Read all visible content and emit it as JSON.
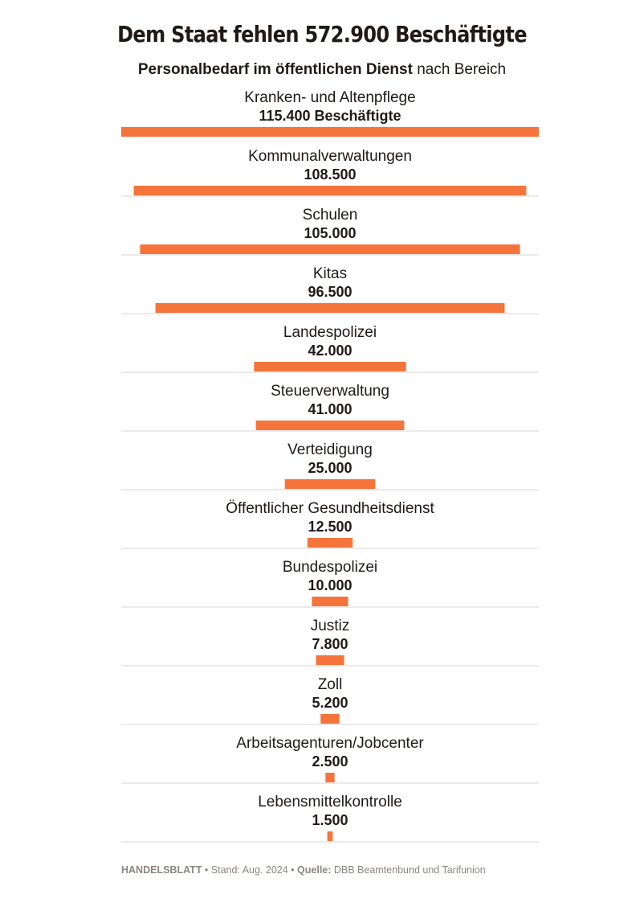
{
  "header": {
    "title": "Dem Staat fehlen 572.900 Beschäftigte",
    "subtitle_bold": "Personalbedarf im öffentlichen Dienst",
    "subtitle_rest": " nach Bereich"
  },
  "footer": {
    "publisher": "HANDELSBLATT",
    "sep": " • ",
    "stand": "Stand: Aug. 2024",
    "source_label": "Quelle:",
    "source_text": " DBB Beamtenbund und Tarifunion"
  },
  "colors": {
    "bar": "#f4743b",
    "divider": "#d9d6d2",
    "text": "#1f1a17",
    "footer": "#8a8580"
  },
  "chart_data": {
    "type": "bar",
    "orientation": "horizontal-centered",
    "title": "Dem Staat fehlen 572.900 Beschäftigte",
    "subtitle": "Personalbedarf im öffentlichen Dienst nach Bereich",
    "categories": [
      "Kranken- und Altenpflege",
      "Kommunalverwaltungen",
      "Schulen",
      "Kitas",
      "Landespolizei",
      "Steuerverwaltung",
      "Verteidigung",
      "Öffentlicher Gesundheitsdienst",
      "Bundespolizei",
      "Justiz",
      "Zoll",
      "Arbeitsagenturen/Jobcenter",
      "Lebensmittelkontrolle"
    ],
    "values": [
      115400,
      108500,
      105000,
      96500,
      42000,
      41000,
      25000,
      12500,
      10000,
      7800,
      5200,
      2500,
      1500
    ],
    "value_labels": [
      "115.400 Beschäftigte",
      "108.500",
      "105.000",
      "96.500",
      "42.000",
      "41.000",
      "25.000",
      "12.500",
      "10.000",
      "7.800",
      "5.200",
      "2.500",
      "1.500"
    ],
    "xlim": [
      0,
      115400
    ],
    "grid": false,
    "legend": "none"
  }
}
